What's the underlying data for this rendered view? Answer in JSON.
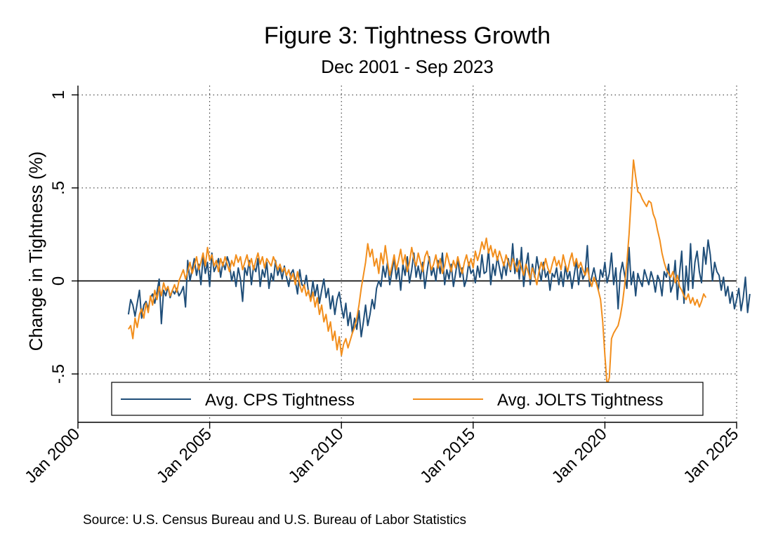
{
  "chart_data": {
    "type": "line",
    "title": "Figure 3: Tightness Growth",
    "subtitle": "Dec 2001 - Sep 2023",
    "ylabel": "Change in Tightness (%)",
    "xlabel": "",
    "source": "Source: U.S. Census Bureau and U.S. Bureau of Labor Statistics",
    "xlim": [
      2000,
      2025
    ],
    "ylim": [
      -0.76,
      1.05
    ],
    "x_ticks": [
      2000,
      2005,
      2010,
      2015,
      2020,
      2025
    ],
    "x_tick_labels": [
      "Jan 2000",
      "Jan 2005",
      "Jan 2010",
      "Jan 2015",
      "Jan 2020",
      "Jan 2025"
    ],
    "y_ticks": [
      -0.5,
      0,
      0.5,
      1
    ],
    "y_tick_labels": [
      "-.5",
      "0",
      ".5",
      "1"
    ],
    "grid": true,
    "zero_line": true,
    "legend_position": "bottom",
    "colors": {
      "cps": "#1f4e79",
      "jolts": "#f28e1c"
    },
    "series": [
      {
        "name": "Avg. CPS Tightness",
        "key": "cps",
        "x_start": 2001.917,
        "x_step": 0.0833333,
        "values": [
          -0.18,
          -0.1,
          -0.13,
          -0.19,
          -0.12,
          -0.05,
          -0.2,
          -0.13,
          -0.11,
          -0.15,
          -0.09,
          -0.07,
          -0.12,
          -0.06,
          0.01,
          -0.23,
          -0.05,
          -0.08,
          -0.03,
          -0.09,
          -0.05,
          -0.07,
          -0.04,
          -0.08,
          -0.06,
          -0.03,
          -0.14,
          0.11,
          0.0,
          0.06,
          0.12,
          0.03,
          0.09,
          -0.02,
          0.13,
          0.04,
          0.1,
          -0.03,
          0.15,
          0.05,
          0.08,
          0.12,
          0.02,
          0.1,
          0.06,
          0.13,
          0.09,
          0.0,
          0.05,
          -0.03,
          0.07,
          0.01,
          -0.11,
          0.07,
          0.03,
          0.11,
          -0.02,
          0.08,
          0.05,
          0.12,
          -0.03,
          0.06,
          0.02,
          0.1,
          -0.04,
          0.04,
          0.0,
          0.11,
          0.03,
          0.07,
          0.01,
          0.08,
          0.02,
          -0.03,
          0.04,
          0.06,
          0.0,
          -0.07,
          0.06,
          -0.02,
          -0.03,
          0.03,
          -0.06,
          -0.1,
          0.0,
          -0.08,
          -0.02,
          -0.12,
          -0.05,
          0.01,
          -0.09,
          -0.04,
          -0.15,
          -0.08,
          -0.18,
          -0.1,
          -0.06,
          -0.14,
          -0.2,
          -0.12,
          -0.24,
          -0.17,
          -0.28,
          -0.2,
          -0.26,
          -0.16,
          -0.3,
          -0.22,
          -0.13,
          -0.24,
          -0.18,
          -0.1,
          -0.15,
          -0.04,
          0.0,
          -0.03,
          0.08,
          0.02,
          0.1,
          -0.02,
          0.05,
          0.12,
          0.01,
          0.07,
          -0.05,
          0.09,
          0.03,
          0.13,
          -0.01,
          0.06,
          0.15,
          0.02,
          0.08,
          0.01,
          0.1,
          -0.04,
          0.05,
          0.13,
          0.03,
          0.07,
          0.0,
          0.11,
          0.04,
          0.15,
          -0.02,
          0.06,
          0.01,
          0.09,
          -0.03,
          0.04,
          0.12,
          0.02,
          0.07,
          -0.03,
          0.01,
          0.1,
          0.04,
          0.06,
          -0.01,
          0.08,
          0.02,
          0.14,
          0.04,
          0.05,
          0.17,
          -0.02,
          0.09,
          0.03,
          0.13,
          0.07,
          0.01,
          0.1,
          0.03,
          0.12,
          0.05,
          0.2,
          0.04,
          0.12,
          0.01,
          0.18,
          -0.03,
          0.08,
          0.15,
          -0.02,
          0.09,
          0.02,
          0.13,
          0.06,
          0.0,
          0.1,
          0.02,
          0.05,
          -0.05,
          0.04,
          0.02,
          0.07,
          -0.02,
          0.05,
          -0.03,
          0.08,
          0.01,
          0.05,
          -0.04,
          0.03,
          0.11,
          -0.02,
          0.07,
          0.01,
          0.04,
          0.19,
          -0.03,
          0.02,
          0.07,
          0.01,
          -0.05,
          0.06,
          0.02,
          0.1,
          -0.01,
          0.04,
          0.15,
          -0.02,
          0.07,
          -0.15,
          0.04,
          0.1,
          0.03,
          -0.04,
          0.18,
          -0.02,
          0.05,
          -0.08,
          0.04,
          0.0,
          -0.03,
          0.06,
          0.02,
          -0.02,
          0.05,
          0.01,
          -0.06,
          0.03,
          0.0,
          -0.08,
          0.05,
          0.02,
          0.09,
          -0.06,
          -0.02,
          0.11,
          -0.1,
          0.04,
          0.16,
          -0.12,
          0.08,
          -0.05,
          0.2,
          -0.04,
          0.1,
          0.16,
          0.05,
          -0.01,
          0.18,
          0.09,
          0.22,
          0.14,
          0.0,
          0.1,
          0.05,
          0.03,
          -0.05,
          0.02,
          -0.08,
          -0.03,
          -0.12,
          -0.06,
          -0.15,
          -0.1,
          -0.04,
          -0.16,
          -0.09,
          0.02,
          -0.17,
          -0.07
        ]
      },
      {
        "name": "Avg. JOLTS Tightness",
        "key": "jolts",
        "x_start": 2001.917,
        "x_step": 0.0833333,
        "values": [
          -0.26,
          -0.24,
          -0.31,
          -0.2,
          -0.25,
          -0.18,
          -0.15,
          -0.2,
          -0.12,
          -0.17,
          -0.08,
          -0.13,
          -0.05,
          -0.1,
          -0.03,
          -0.08,
          -0.01,
          -0.05,
          -0.03,
          -0.08,
          -0.05,
          -0.02,
          -0.06,
          0.0,
          0.03,
          0.06,
          0.01,
          0.05,
          0.1,
          0.04,
          0.08,
          0.13,
          0.06,
          0.1,
          0.15,
          0.08,
          0.18,
          0.11,
          0.14,
          0.08,
          0.11,
          0.05,
          0.12,
          0.08,
          0.13,
          0.09,
          0.05,
          0.11,
          0.08,
          0.14,
          0.1,
          0.13,
          0.06,
          0.1,
          0.14,
          0.08,
          0.12,
          0.06,
          0.11,
          0.15,
          0.09,
          0.13,
          0.07,
          0.12,
          0.1,
          0.08,
          0.13,
          0.1,
          0.06,
          0.09,
          0.05,
          0.07,
          0.03,
          0.06,
          0.01,
          0.04,
          -0.02,
          0.05,
          -0.02,
          -0.06,
          -0.02,
          -0.08,
          -0.05,
          -0.11,
          -0.06,
          -0.14,
          -0.09,
          -0.18,
          -0.13,
          -0.22,
          -0.18,
          -0.27,
          -0.22,
          -0.32,
          -0.27,
          -0.37,
          -0.3,
          -0.4,
          -0.34,
          -0.31,
          -0.36,
          -0.32,
          -0.28,
          -0.25,
          -0.2,
          -0.13,
          -0.04,
          0.03,
          0.1,
          0.2,
          0.13,
          0.17,
          0.08,
          0.12,
          0.04,
          0.15,
          0.09,
          0.19,
          0.1,
          0.03,
          0.08,
          0.14,
          0.06,
          0.11,
          0.17,
          0.09,
          0.14,
          0.05,
          0.1,
          0.18,
          0.12,
          0.08,
          0.15,
          0.1,
          0.05,
          0.13,
          0.16,
          0.11,
          0.06,
          0.09,
          0.14,
          0.07,
          0.12,
          0.04,
          0.08,
          0.15,
          0.1,
          0.05,
          0.11,
          0.07,
          0.13,
          0.08,
          0.04,
          0.1,
          0.14,
          0.08,
          0.12,
          0.07,
          0.16,
          0.11,
          0.15,
          0.21,
          0.17,
          0.23,
          0.15,
          0.19,
          0.13,
          0.17,
          0.11,
          0.16,
          0.12,
          0.08,
          0.14,
          0.1,
          0.06,
          0.12,
          0.09,
          0.05,
          0.11,
          0.07,
          0.03,
          0.09,
          0.05,
          0.01,
          0.07,
          0.03,
          -0.02,
          0.05,
          0.1,
          0.06,
          0.12,
          0.07,
          0.04,
          0.09,
          0.13,
          0.08,
          0.11,
          0.06,
          0.14,
          0.09,
          0.05,
          0.11,
          0.15,
          0.08,
          0.12,
          0.07,
          0.1,
          0.06,
          0.03,
          0.07,
          0.01,
          -0.03,
          0.02,
          -0.01,
          -0.05,
          -0.1,
          -0.22,
          -0.4,
          -0.56,
          -0.52,
          -0.31,
          -0.28,
          -0.26,
          -0.24,
          -0.19,
          -0.12,
          -0.02,
          0.1,
          0.25,
          0.45,
          0.65,
          0.56,
          0.48,
          0.47,
          0.44,
          0.42,
          0.4,
          0.43,
          0.42,
          0.36,
          0.33,
          0.27,
          0.22,
          0.15,
          0.1,
          0.06,
          0.04,
          0.02,
          0.05,
          -0.01,
          0.03,
          -0.03,
          -0.05,
          -0.08,
          -0.1,
          -0.07,
          -0.12,
          -0.09,
          -0.13,
          -0.1,
          -0.14,
          -0.11,
          -0.07,
          -0.09
        ]
      }
    ]
  }
}
